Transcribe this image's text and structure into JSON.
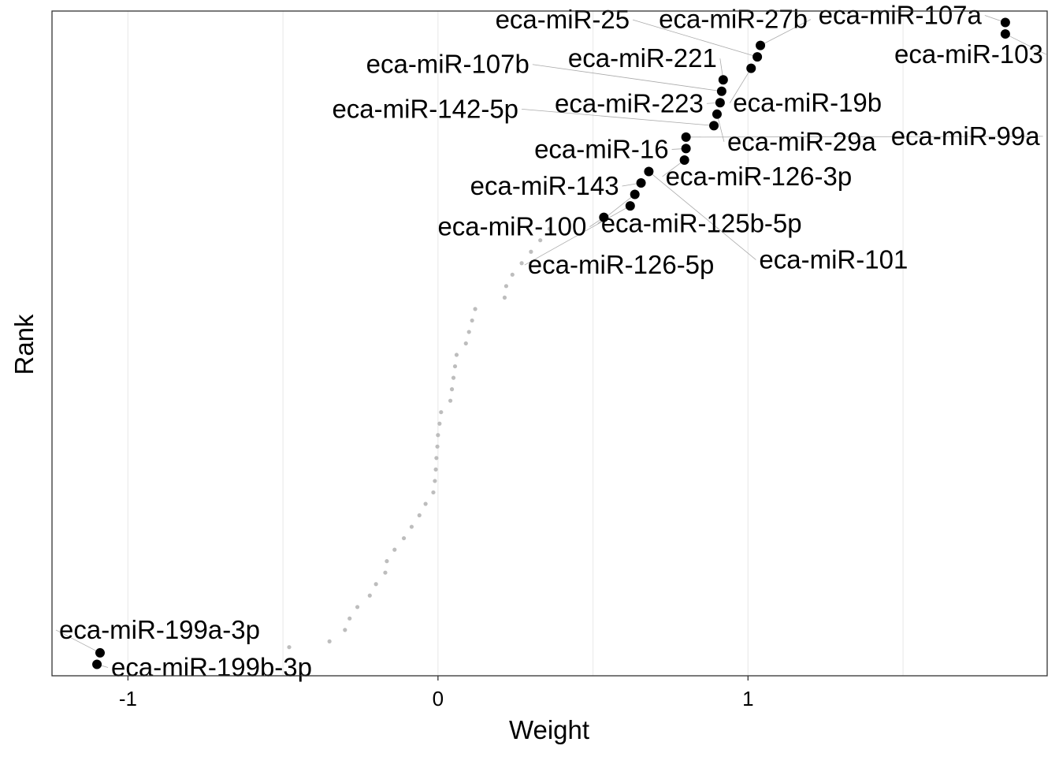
{
  "chart_data": {
    "type": "scatter",
    "xlabel": "Weight",
    "ylabel": "Rank",
    "xlim": [
      -1.245,
      1.965
    ],
    "ylim": [
      0,
      58
    ],
    "x_ticks": [
      -1,
      0,
      1
    ],
    "x_tick_labels": [
      "-1",
      "0",
      "1"
    ],
    "grid": "vertical lines only",
    "highlight_color": "#000000",
    "background_color": "#bdbdbd",
    "labeled_points": [
      {
        "name": "eca-miR-107a",
        "x": 1.83,
        "y": 57
      },
      {
        "name": "eca-miR-103",
        "x": 1.83,
        "y": 56
      },
      {
        "name": "eca-miR-27b",
        "x": 1.04,
        "y": 55
      },
      {
        "name": "eca-miR-25",
        "x": 1.03,
        "y": 54
      },
      {
        "name": "eca-miR-19b",
        "x": 1.01,
        "y": 53
      },
      {
        "name": "eca-miR-221",
        "x": 0.92,
        "y": 52
      },
      {
        "name": "eca-miR-107b",
        "x": 0.915,
        "y": 51
      },
      {
        "name": "eca-miR-223",
        "x": 0.91,
        "y": 50
      },
      {
        "name": "eca-miR-29a",
        "x": 0.9,
        "y": 49
      },
      {
        "name": "eca-miR-142-5p",
        "x": 0.89,
        "y": 48
      },
      {
        "name": "eca-miR-99a",
        "x": 0.8,
        "y": 47
      },
      {
        "name": "eca-miR-16",
        "x": 0.8,
        "y": 46
      },
      {
        "name": "eca-miR-126-3p",
        "x": 0.795,
        "y": 45
      },
      {
        "name": "eca-miR-101",
        "x": 0.68,
        "y": 44
      },
      {
        "name": "eca-miR-143",
        "x": 0.655,
        "y": 43
      },
      {
        "name": "eca-miR-125b-5p",
        "x": 0.635,
        "y": 42
      },
      {
        "name": "eca-miR-126-5p",
        "x": 0.62,
        "y": 41
      },
      {
        "name": "eca-miR-100",
        "x": 0.535,
        "y": 40
      },
      {
        "name": "eca-miR-199a-3p",
        "x": -1.09,
        "y": 2
      },
      {
        "name": "eca-miR-199b-3p",
        "x": -1.1,
        "y": 1
      }
    ],
    "background_points": [
      {
        "x": 0.36,
        "y": 39
      },
      {
        "x": 0.33,
        "y": 38
      },
      {
        "x": 0.3,
        "y": 37
      },
      {
        "x": 0.27,
        "y": 36
      },
      {
        "x": 0.24,
        "y": 35
      },
      {
        "x": 0.22,
        "y": 34
      },
      {
        "x": 0.215,
        "y": 33
      },
      {
        "x": 0.12,
        "y": 32
      },
      {
        "x": 0.11,
        "y": 31
      },
      {
        "x": 0.1,
        "y": 30
      },
      {
        "x": 0.09,
        "y": 29
      },
      {
        "x": 0.06,
        "y": 28
      },
      {
        "x": 0.055,
        "y": 27
      },
      {
        "x": 0.05,
        "y": 26
      },
      {
        "x": 0.045,
        "y": 25
      },
      {
        "x": 0.04,
        "y": 24
      },
      {
        "x": 0.01,
        "y": 23
      },
      {
        "x": 0.005,
        "y": 22
      },
      {
        "x": 0.0,
        "y": 21
      },
      {
        "x": -0.002,
        "y": 20
      },
      {
        "x": -0.005,
        "y": 19
      },
      {
        "x": -0.007,
        "y": 18
      },
      {
        "x": -0.01,
        "y": 17
      },
      {
        "x": -0.015,
        "y": 16
      },
      {
        "x": -0.04,
        "y": 15
      },
      {
        "x": -0.06,
        "y": 14
      },
      {
        "x": -0.085,
        "y": 13
      },
      {
        "x": -0.11,
        "y": 12
      },
      {
        "x": -0.14,
        "y": 11
      },
      {
        "x": -0.165,
        "y": 10
      },
      {
        "x": -0.17,
        "y": 9
      },
      {
        "x": -0.2,
        "y": 8
      },
      {
        "x": -0.22,
        "y": 7
      },
      {
        "x": -0.26,
        "y": 6
      },
      {
        "x": -0.285,
        "y": 5
      },
      {
        "x": -0.3,
        "y": 4
      },
      {
        "x": -0.35,
        "y": 3
      },
      {
        "x": -0.48,
        "y": 2.5
      }
    ]
  }
}
